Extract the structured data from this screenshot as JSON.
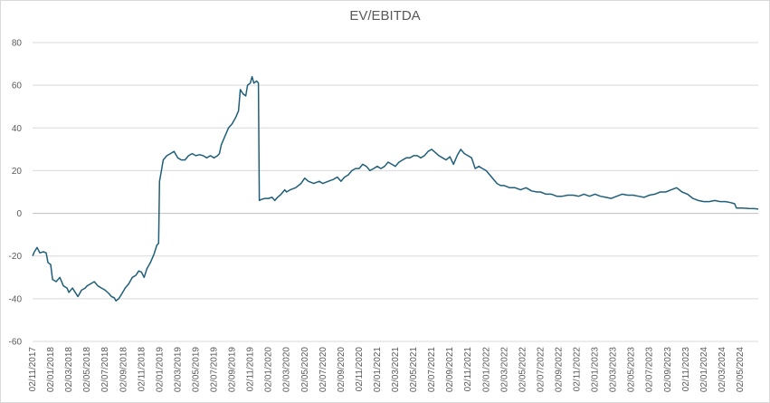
{
  "chart_data": {
    "type": "line",
    "title": "EV/EBITDA",
    "xlabel": "",
    "ylabel": "",
    "ylim": [
      -60,
      80
    ],
    "yticks": [
      80,
      60,
      40,
      20,
      0,
      -20,
      -40,
      -60
    ],
    "grid": true,
    "legend": "none",
    "line_color": "#1f5f7a",
    "xticks": [
      "02/11/2017",
      "02/01/2018",
      "02/03/2018",
      "02/05/2018",
      "02/07/2018",
      "02/09/2018",
      "02/11/2018",
      "02/01/2019",
      "02/03/2019",
      "02/05/2019",
      "02/07/2019",
      "02/09/2019",
      "02/11/2019",
      "02/01/2020",
      "02/03/2020",
      "02/05/2020",
      "02/07/2020",
      "02/09/2020",
      "02/11/2020",
      "02/01/2021",
      "02/03/2021",
      "02/05/2021",
      "02/07/2021",
      "02/09/2021",
      "02/11/2021",
      "02/01/2022",
      "02/03/2022",
      "02/05/2022",
      "02/07/2022",
      "02/09/2022",
      "02/11/2022",
      "02/01/2023",
      "02/03/2023",
      "02/05/2023",
      "02/07/2023",
      "02/09/2023",
      "02/11/2023",
      "02/01/2024",
      "02/03/2024",
      "02/05/2024"
    ],
    "series": [
      {
        "points": [
          [
            0,
            -20
          ],
          [
            0.1,
            -18
          ],
          [
            0.25,
            -16
          ],
          [
            0.4,
            -18.5
          ],
          [
            0.6,
            -18
          ],
          [
            0.75,
            -18.5
          ],
          [
            0.85,
            -23
          ],
          [
            1.0,
            -24
          ],
          [
            1.1,
            -31
          ],
          [
            1.3,
            -32
          ],
          [
            1.5,
            -30
          ],
          [
            1.7,
            -34
          ],
          [
            1.9,
            -35
          ],
          [
            2.0,
            -37
          ],
          [
            2.2,
            -35
          ],
          [
            2.35,
            -37
          ],
          [
            2.5,
            -39
          ],
          [
            2.7,
            -36
          ],
          [
            2.9,
            -35
          ],
          [
            3.0,
            -34
          ],
          [
            3.2,
            -33
          ],
          [
            3.4,
            -32
          ],
          [
            3.6,
            -34
          ],
          [
            3.8,
            -35
          ],
          [
            4.0,
            -36
          ],
          [
            4.2,
            -37.5
          ],
          [
            4.35,
            -39
          ],
          [
            4.5,
            -39.5
          ],
          [
            4.6,
            -41
          ],
          [
            4.75,
            -40
          ],
          [
            4.9,
            -38
          ],
          [
            5.1,
            -35
          ],
          [
            5.3,
            -33
          ],
          [
            5.5,
            -30
          ],
          [
            5.7,
            -29
          ],
          [
            5.85,
            -27
          ],
          [
            6.0,
            -27.5
          ],
          [
            6.15,
            -30
          ],
          [
            6.3,
            -26
          ],
          [
            6.5,
            -23
          ],
          [
            6.7,
            -19
          ],
          [
            6.85,
            -15
          ],
          [
            6.95,
            -14
          ],
          [
            7.0,
            15
          ],
          [
            7.1,
            20
          ],
          [
            7.2,
            25
          ],
          [
            7.4,
            27
          ],
          [
            7.6,
            28
          ],
          [
            7.8,
            29
          ],
          [
            8.0,
            26
          ],
          [
            8.2,
            25
          ],
          [
            8.4,
            25
          ],
          [
            8.6,
            27
          ],
          [
            8.8,
            28
          ],
          [
            9.0,
            27
          ],
          [
            9.2,
            27.5
          ],
          [
            9.4,
            27
          ],
          [
            9.6,
            26
          ],
          [
            9.8,
            27
          ],
          [
            10.0,
            26
          ],
          [
            10.2,
            27
          ],
          [
            10.3,
            28
          ],
          [
            10.4,
            32
          ],
          [
            10.6,
            36
          ],
          [
            10.8,
            40
          ],
          [
            11.0,
            42
          ],
          [
            11.2,
            45
          ],
          [
            11.35,
            48
          ],
          [
            11.45,
            58
          ],
          [
            11.6,
            56
          ],
          [
            11.75,
            55
          ],
          [
            11.85,
            60
          ],
          [
            12.0,
            61
          ],
          [
            12.1,
            64
          ],
          [
            12.2,
            61
          ],
          [
            12.35,
            62
          ],
          [
            12.45,
            61
          ],
          [
            12.5,
            6
          ],
          [
            12.6,
            6.5
          ],
          [
            12.8,
            7
          ],
          [
            13.0,
            7
          ],
          [
            13.2,
            7.5
          ],
          [
            13.35,
            6
          ],
          [
            13.5,
            7.5
          ],
          [
            13.7,
            9
          ],
          [
            13.9,
            11
          ],
          [
            14.0,
            10
          ],
          [
            14.2,
            11
          ],
          [
            14.5,
            12
          ],
          [
            14.8,
            14
          ],
          [
            15.0,
            16.5
          ],
          [
            15.2,
            15
          ],
          [
            15.5,
            14
          ],
          [
            15.8,
            15
          ],
          [
            16.0,
            14
          ],
          [
            16.3,
            15
          ],
          [
            16.6,
            16
          ],
          [
            16.8,
            17
          ],
          [
            17.0,
            15
          ],
          [
            17.2,
            17
          ],
          [
            17.4,
            18
          ],
          [
            17.6,
            20
          ],
          [
            17.8,
            21
          ],
          [
            18.0,
            21
          ],
          [
            18.2,
            23
          ],
          [
            18.4,
            22
          ],
          [
            18.6,
            20
          ],
          [
            18.8,
            21
          ],
          [
            19.0,
            22
          ],
          [
            19.2,
            21
          ],
          [
            19.4,
            22
          ],
          [
            19.6,
            24
          ],
          [
            19.8,
            23
          ],
          [
            20.0,
            22
          ],
          [
            20.2,
            24
          ],
          [
            20.4,
            25
          ],
          [
            20.6,
            26
          ],
          [
            20.8,
            26
          ],
          [
            21.0,
            27
          ],
          [
            21.2,
            27
          ],
          [
            21.4,
            26
          ],
          [
            21.6,
            27
          ],
          [
            21.8,
            29
          ],
          [
            22.0,
            30
          ],
          [
            22.2,
            28.5
          ],
          [
            22.4,
            27
          ],
          [
            22.6,
            26
          ],
          [
            22.8,
            25
          ],
          [
            23.0,
            26.5
          ],
          [
            23.2,
            23
          ],
          [
            23.4,
            27
          ],
          [
            23.6,
            30
          ],
          [
            23.8,
            28
          ],
          [
            24.0,
            27
          ],
          [
            24.2,
            26
          ],
          [
            24.4,
            21
          ],
          [
            24.6,
            22
          ],
          [
            24.8,
            21
          ],
          [
            25.0,
            20
          ],
          [
            25.2,
            18
          ],
          [
            25.4,
            16
          ],
          [
            25.6,
            14
          ],
          [
            25.8,
            13
          ],
          [
            26.0,
            13
          ],
          [
            26.3,
            12
          ],
          [
            26.6,
            12
          ],
          [
            26.9,
            11
          ],
          [
            27.2,
            12
          ],
          [
            27.5,
            10.5
          ],
          [
            27.8,
            10
          ],
          [
            28.0,
            10
          ],
          [
            28.3,
            9
          ],
          [
            28.6,
            9
          ],
          [
            28.9,
            8
          ],
          [
            29.2,
            8
          ],
          [
            29.5,
            8.5
          ],
          [
            29.8,
            8.5
          ],
          [
            30.1,
            8
          ],
          [
            30.4,
            9
          ],
          [
            30.7,
            8
          ],
          [
            31.0,
            9
          ],
          [
            31.3,
            8
          ],
          [
            31.6,
            7.5
          ],
          [
            31.9,
            7
          ],
          [
            32.2,
            8
          ],
          [
            32.5,
            9
          ],
          [
            32.8,
            8.5
          ],
          [
            33.1,
            8.5
          ],
          [
            33.4,
            8
          ],
          [
            33.7,
            7.5
          ],
          [
            34.0,
            8.5
          ],
          [
            34.3,
            9
          ],
          [
            34.6,
            10
          ],
          [
            34.9,
            10
          ],
          [
            35.2,
            11
          ],
          [
            35.5,
            12
          ],
          [
            35.8,
            10
          ],
          [
            36.1,
            9
          ],
          [
            36.4,
            7
          ],
          [
            36.7,
            6
          ],
          [
            37.0,
            5.5
          ],
          [
            37.3,
            5.5
          ],
          [
            37.6,
            6
          ],
          [
            37.9,
            5.5
          ],
          [
            38.2,
            5.5
          ],
          [
            38.5,
            5
          ],
          [
            38.7,
            4.5
          ],
          [
            38.8,
            2.5
          ],
          [
            39.1,
            2.5
          ],
          [
            39.5,
            2.3
          ],
          [
            39.8,
            2.2
          ],
          [
            40.1,
            2
          ]
        ]
      }
    ]
  }
}
